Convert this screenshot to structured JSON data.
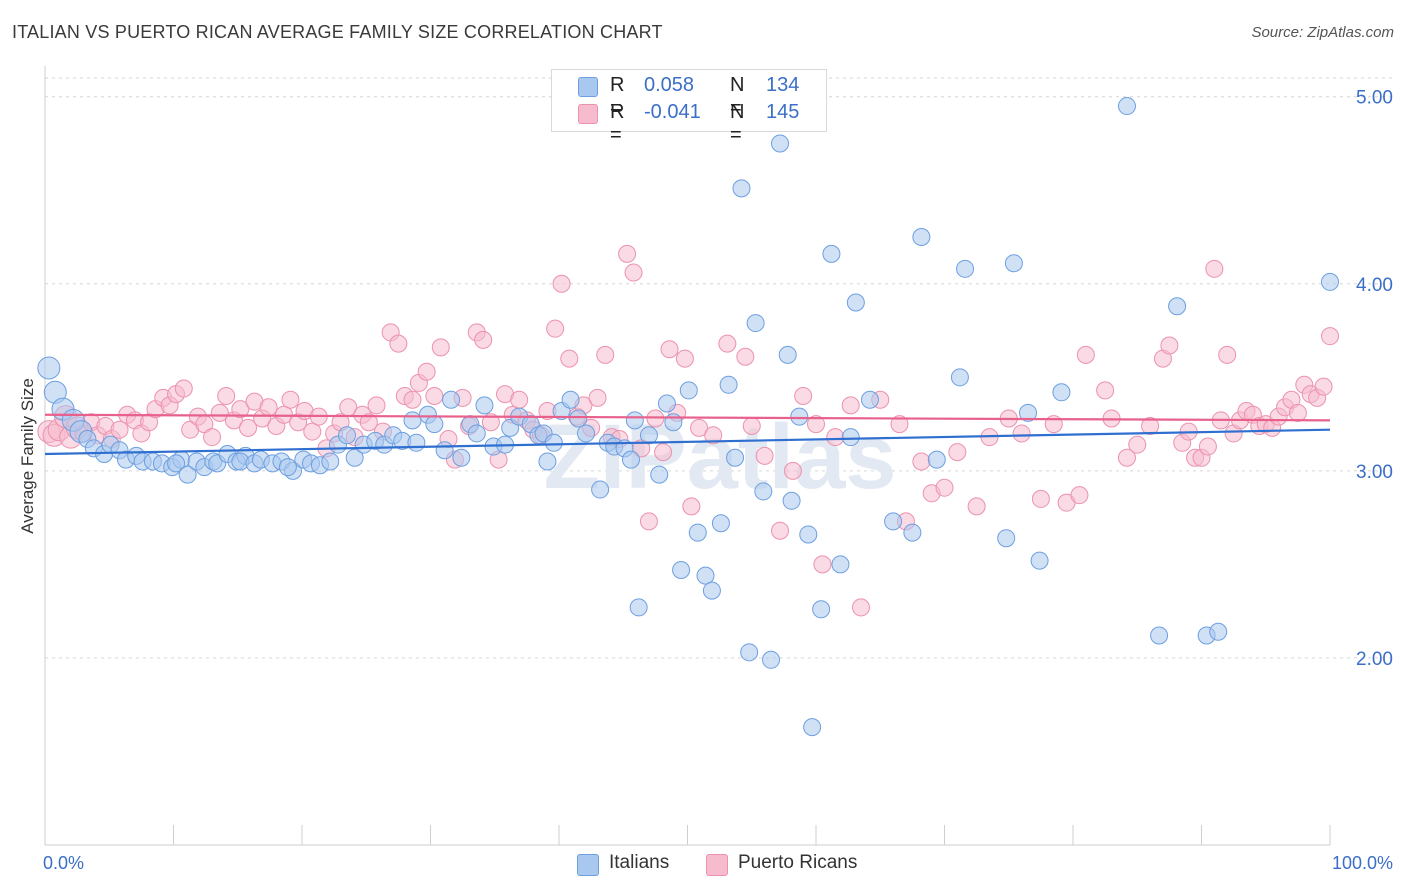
{
  "header": {
    "title": "ITALIAN VS PUERTO RICAN AVERAGE FAMILY SIZE CORRELATION CHART",
    "source": "Source: ZipAtlas.com"
  },
  "watermark": "ZIPatlas",
  "legend": {
    "series": [
      {
        "r_label": "R =",
        "r_value": "0.058",
        "n_label": "N =",
        "n_value": "134"
      },
      {
        "r_label": "R =",
        "r_value": "-0.041",
        "n_label": "N =",
        "n_value": "145"
      }
    ]
  },
  "bottom_legend": [
    "Italians",
    "Puerto Ricans"
  ],
  "colors": {
    "italians_fill": "#a9c8ef",
    "italians_stroke": "#6d9fe0",
    "italians_line": "#2f6fd0",
    "puerto_fill": "#f6bccd",
    "puerto_stroke": "#ec92ae",
    "puerto_line": "#e8608c",
    "tick_text": "#3b6fc7",
    "grid": "#d6d6d6"
  },
  "chart_data": {
    "type": "scatter",
    "title": "ITALIAN VS PUERTO RICAN AVERAGE FAMILY SIZE CORRELATION CHART",
    "xlabel": "",
    "ylabel": "Average Family Size",
    "xlim": [
      0,
      100
    ],
    "ylim": [
      1.0,
      5.1
    ],
    "y_ticks": [
      2.0,
      3.0,
      4.0,
      5.0
    ],
    "y_tick_labels": [
      "2.00",
      "3.00",
      "4.00",
      "5.00"
    ],
    "x_tick_labels": [
      "0.0%",
      "100.0%"
    ],
    "grid": true,
    "legend_position": "top-center",
    "series": [
      {
        "name": "Italians",
        "r": 0.058,
        "n": 134,
        "trend": {
          "x": [
            0,
            100
          ],
          "y": [
            3.09,
            3.22
          ]
        },
        "points": [
          [
            0.3,
            3.55
          ],
          [
            0.8,
            3.42
          ],
          [
            1.4,
            3.33
          ],
          [
            2.2,
            3.27
          ],
          [
            2.8,
            3.21
          ],
          [
            3.3,
            3.17
          ],
          [
            3.8,
            3.12
          ],
          [
            4.6,
            3.09
          ],
          [
            5.1,
            3.14
          ],
          [
            5.8,
            3.11
          ],
          [
            6.3,
            3.06
          ],
          [
            7.1,
            3.08
          ],
          [
            7.6,
            3.05
          ],
          [
            8.4,
            3.05
          ],
          [
            9.1,
            3.04
          ],
          [
            9.9,
            3.02
          ],
          [
            10.6,
            3.06
          ],
          [
            10.2,
            3.04
          ],
          [
            11.1,
            2.98
          ],
          [
            11.8,
            3.05
          ],
          [
            12.4,
            3.02
          ],
          [
            13.1,
            3.05
          ],
          [
            13.4,
            3.04
          ],
          [
            14.2,
            3.09
          ],
          [
            14.9,
            3.05
          ],
          [
            15.6,
            3.08
          ],
          [
            15.2,
            3.05
          ],
          [
            16.3,
            3.04
          ],
          [
            16.8,
            3.06
          ],
          [
            17.7,
            3.04
          ],
          [
            18.4,
            3.05
          ],
          [
            19.3,
            3.0
          ],
          [
            18.9,
            3.02
          ],
          [
            20.1,
            3.06
          ],
          [
            20.7,
            3.04
          ],
          [
            21.4,
            3.03
          ],
          [
            22.2,
            3.05
          ],
          [
            22.8,
            3.14
          ],
          [
            23.5,
            3.19
          ],
          [
            24.1,
            3.07
          ],
          [
            24.8,
            3.14
          ],
          [
            25.7,
            3.16
          ],
          [
            26.4,
            3.14
          ],
          [
            27.1,
            3.19
          ],
          [
            27.8,
            3.16
          ],
          [
            28.6,
            3.27
          ],
          [
            28.9,
            3.15
          ],
          [
            29.8,
            3.3
          ],
          [
            30.3,
            3.25
          ],
          [
            31.1,
            3.11
          ],
          [
            31.6,
            3.38
          ],
          [
            32.4,
            3.07
          ],
          [
            33.1,
            3.25
          ],
          [
            33.6,
            3.2
          ],
          [
            34.2,
            3.35
          ],
          [
            34.9,
            3.13
          ],
          [
            35.8,
            3.14
          ],
          [
            36.2,
            3.23
          ],
          [
            36.9,
            3.29
          ],
          [
            37.8,
            3.25
          ],
          [
            38.4,
            3.19
          ],
          [
            38.8,
            3.2
          ],
          [
            39.1,
            3.05
          ],
          [
            39.6,
            3.15
          ],
          [
            40.2,
            3.32
          ],
          [
            40.9,
            3.38
          ],
          [
            41.5,
            3.28
          ],
          [
            42.1,
            3.2
          ],
          [
            43.2,
            2.9
          ],
          [
            43.8,
            3.15
          ],
          [
            44.3,
            3.13
          ],
          [
            45.1,
            3.12
          ],
          [
            45.6,
            3.06
          ],
          [
            45.9,
            3.27
          ],
          [
            46.2,
            2.27
          ],
          [
            47.0,
            3.19
          ],
          [
            47.8,
            2.98
          ],
          [
            48.4,
            3.36
          ],
          [
            48.9,
            3.26
          ],
          [
            49.5,
            2.47
          ],
          [
            50.1,
            3.43
          ],
          [
            50.8,
            2.67
          ],
          [
            51.4,
            2.44
          ],
          [
            51.9,
            2.36
          ],
          [
            52.6,
            2.72
          ],
          [
            53.2,
            3.46
          ],
          [
            53.7,
            3.07
          ],
          [
            54.2,
            4.51
          ],
          [
            54.8,
            2.03
          ],
          [
            55.3,
            3.79
          ],
          [
            55.9,
            2.89
          ],
          [
            56.5,
            1.99
          ],
          [
            57.2,
            4.75
          ],
          [
            57.8,
            3.62
          ],
          [
            58.1,
            2.84
          ],
          [
            58.7,
            3.29
          ],
          [
            59.4,
            2.66
          ],
          [
            59.7,
            1.63
          ],
          [
            60.4,
            2.26
          ],
          [
            61.2,
            4.16
          ],
          [
            61.9,
            2.5
          ],
          [
            63.1,
            3.9
          ],
          [
            62.7,
            3.18
          ],
          [
            64.2,
            3.38
          ],
          [
            66.0,
            2.73
          ],
          [
            67.5,
            2.67
          ],
          [
            68.2,
            4.25
          ],
          [
            69.4,
            3.06
          ],
          [
            71.6,
            4.08
          ],
          [
            71.2,
            3.5
          ],
          [
            75.4,
            4.11
          ],
          [
            74.8,
            2.64
          ],
          [
            76.5,
            3.31
          ],
          [
            77.4,
            2.52
          ],
          [
            79.1,
            3.42
          ],
          [
            84.2,
            4.95
          ],
          [
            86.7,
            2.12
          ],
          [
            88.1,
            3.88
          ],
          [
            90.4,
            2.12
          ],
          [
            91.3,
            2.14
          ],
          [
            100.0,
            4.01
          ]
        ]
      },
      {
        "name": "Puerto Ricans",
        "r": -0.041,
        "n": 145,
        "trend": {
          "x": [
            0,
            100
          ],
          "y": [
            3.3,
            3.27
          ]
        },
        "points": [
          [
            0.3,
            3.21
          ],
          [
            0.7,
            3.19
          ],
          [
            1.1,
            3.22
          ],
          [
            1.6,
            3.29
          ],
          [
            2.0,
            3.18
          ],
          [
            2.5,
            3.23
          ],
          [
            3.0,
            3.2
          ],
          [
            3.6,
            3.26
          ],
          [
            4.1,
            3.19
          ],
          [
            4.7,
            3.24
          ],
          [
            5.2,
            3.17
          ],
          [
            5.8,
            3.22
          ],
          [
            6.4,
            3.3
          ],
          [
            7.0,
            3.27
          ],
          [
            7.5,
            3.2
          ],
          [
            8.1,
            3.26
          ],
          [
            8.6,
            3.33
          ],
          [
            9.2,
            3.39
          ],
          [
            9.7,
            3.35
          ],
          [
            10.2,
            3.41
          ],
          [
            10.8,
            3.44
          ],
          [
            11.3,
            3.22
          ],
          [
            11.9,
            3.29
          ],
          [
            12.4,
            3.25
          ],
          [
            13.0,
            3.18
          ],
          [
            13.6,
            3.31
          ],
          [
            14.1,
            3.4
          ],
          [
            14.7,
            3.27
          ],
          [
            15.2,
            3.33
          ],
          [
            15.8,
            3.23
          ],
          [
            16.3,
            3.37
          ],
          [
            16.9,
            3.28
          ],
          [
            17.4,
            3.34
          ],
          [
            18.0,
            3.24
          ],
          [
            18.6,
            3.3
          ],
          [
            19.1,
            3.38
          ],
          [
            19.7,
            3.26
          ],
          [
            20.2,
            3.32
          ],
          [
            20.8,
            3.21
          ],
          [
            21.3,
            3.29
          ],
          [
            21.9,
            3.12
          ],
          [
            22.5,
            3.2
          ],
          [
            23.0,
            3.26
          ],
          [
            23.6,
            3.34
          ],
          [
            24.1,
            3.18
          ],
          [
            24.7,
            3.3
          ],
          [
            25.2,
            3.26
          ],
          [
            25.8,
            3.35
          ],
          [
            26.3,
            3.21
          ],
          [
            26.9,
            3.74
          ],
          [
            27.5,
            3.68
          ],
          [
            28.0,
            3.4
          ],
          [
            28.6,
            3.38
          ],
          [
            29.1,
            3.47
          ],
          [
            29.7,
            3.53
          ],
          [
            30.3,
            3.4
          ],
          [
            30.8,
            3.66
          ],
          [
            31.4,
            3.17
          ],
          [
            31.9,
            3.06
          ],
          [
            32.5,
            3.39
          ],
          [
            33.0,
            3.24
          ],
          [
            33.6,
            3.74
          ],
          [
            34.1,
            3.7
          ],
          [
            34.7,
            3.26
          ],
          [
            35.3,
            3.06
          ],
          [
            35.8,
            3.41
          ],
          [
            36.4,
            3.3
          ],
          [
            36.9,
            3.38
          ],
          [
            37.5,
            3.27
          ],
          [
            38.0,
            3.22
          ],
          [
            38.6,
            3.19
          ],
          [
            39.1,
            3.32
          ],
          [
            40.2,
            4.0
          ],
          [
            39.7,
            3.76
          ],
          [
            40.8,
            3.6
          ],
          [
            41.4,
            3.29
          ],
          [
            41.9,
            3.35
          ],
          [
            42.5,
            3.23
          ],
          [
            43.0,
            3.39
          ],
          [
            43.6,
            3.62
          ],
          [
            44.1,
            3.18
          ],
          [
            44.7,
            3.17
          ],
          [
            45.3,
            4.16
          ],
          [
            45.8,
            4.06
          ],
          [
            46.4,
            3.12
          ],
          [
            47.0,
            2.73
          ],
          [
            47.5,
            3.28
          ],
          [
            48.1,
            3.1
          ],
          [
            48.6,
            3.65
          ],
          [
            49.2,
            3.31
          ],
          [
            49.8,
            3.6
          ],
          [
            50.3,
            2.81
          ],
          [
            50.9,
            3.23
          ],
          [
            52.0,
            3.19
          ],
          [
            53.1,
            3.68
          ],
          [
            54.5,
            3.61
          ],
          [
            55.0,
            3.24
          ],
          [
            56.0,
            3.08
          ],
          [
            57.2,
            2.68
          ],
          [
            58.2,
            3.0
          ],
          [
            59.0,
            3.4
          ],
          [
            60.0,
            3.25
          ],
          [
            60.5,
            2.5
          ],
          [
            61.5,
            3.18
          ],
          [
            62.7,
            3.35
          ],
          [
            63.5,
            2.27
          ],
          [
            65.0,
            3.38
          ],
          [
            66.5,
            3.25
          ],
          [
            67.0,
            2.73
          ],
          [
            68.2,
            3.05
          ],
          [
            69.0,
            2.88
          ],
          [
            70.0,
            2.91
          ],
          [
            71.0,
            3.1
          ],
          [
            72.5,
            2.81
          ],
          [
            73.5,
            3.18
          ],
          [
            75.0,
            3.28
          ],
          [
            76.0,
            3.2
          ],
          [
            77.5,
            2.85
          ],
          [
            78.5,
            3.25
          ],
          [
            79.5,
            2.83
          ],
          [
            80.5,
            2.87
          ],
          [
            81.0,
            3.62
          ],
          [
            82.5,
            3.43
          ],
          [
            83.0,
            3.28
          ],
          [
            84.2,
            3.07
          ],
          [
            85.0,
            3.14
          ],
          [
            86.0,
            3.24
          ],
          [
            87.0,
            3.6
          ],
          [
            87.5,
            3.67
          ],
          [
            88.5,
            3.15
          ],
          [
            89.0,
            3.21
          ],
          [
            89.5,
            3.07
          ],
          [
            90.0,
            3.07
          ],
          [
            90.5,
            3.13
          ],
          [
            91.0,
            4.08
          ],
          [
            91.5,
            3.27
          ],
          [
            92.0,
            3.62
          ],
          [
            92.5,
            3.2
          ],
          [
            93.0,
            3.27
          ],
          [
            93.5,
            3.32
          ],
          [
            94.0,
            3.3
          ],
          [
            94.5,
            3.24
          ],
          [
            95.0,
            3.25
          ],
          [
            95.5,
            3.23
          ],
          [
            96.0,
            3.29
          ],
          [
            96.5,
            3.34
          ],
          [
            97.0,
            3.38
          ],
          [
            97.5,
            3.31
          ],
          [
            98.0,
            3.46
          ],
          [
            98.5,
            3.41
          ],
          [
            99.0,
            3.39
          ],
          [
            99.5,
            3.45
          ],
          [
            100.0,
            3.72
          ]
        ]
      }
    ]
  }
}
